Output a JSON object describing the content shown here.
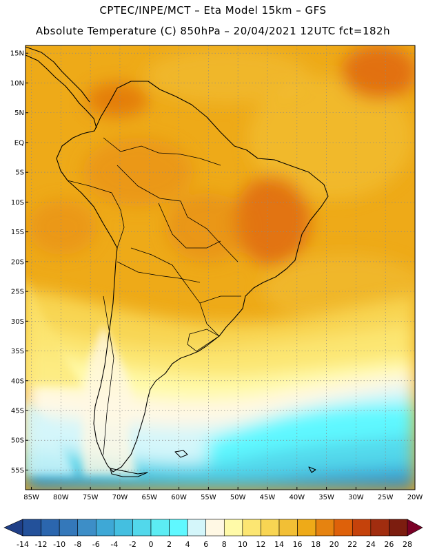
{
  "header": {
    "line1": "CPTEC/INPE/MCT –  Eta Model 15km – GFS",
    "line2": "Absolute Temperature (C) 850hPa – 20/04/2021 12UTC fct=182h"
  },
  "map": {
    "lat_labels": [
      "15N",
      "10N",
      "5N",
      "EQ",
      "5S",
      "10S",
      "15S",
      "20S",
      "25S",
      "30S",
      "35S",
      "40S",
      "45S",
      "50S",
      "55S"
    ],
    "lon_labels": [
      "85W",
      "80W",
      "75W",
      "70W",
      "65W",
      "60W",
      "55W",
      "50W",
      "45W",
      "40W",
      "35W",
      "30W",
      "25W",
      "20W"
    ]
  },
  "colorbar": {
    "ticks": [
      "-14",
      "-12",
      "-10",
      "-8",
      "-6",
      "-4",
      "-2",
      "0",
      "2",
      "4",
      "6",
      "8",
      "10",
      "12",
      "14",
      "16",
      "18",
      "20",
      "22",
      "24",
      "26",
      "28"
    ],
    "colors": [
      "#1f3f87",
      "#23519a",
      "#2b66ae",
      "#3478ba",
      "#3d8ec7",
      "#3ea8d6",
      "#44bfe0",
      "#52d8eb",
      "#5cecf3",
      "#5ff8ff",
      "#d4f6fa",
      "#fff8e4",
      "#fffaa8",
      "#fce672",
      "#f8d553",
      "#f2bf35",
      "#eeaa18",
      "#e68310",
      "#de610a",
      "#c5420b",
      "#a12d0f",
      "#7c1d0f",
      "#7a0026"
    ]
  }
}
